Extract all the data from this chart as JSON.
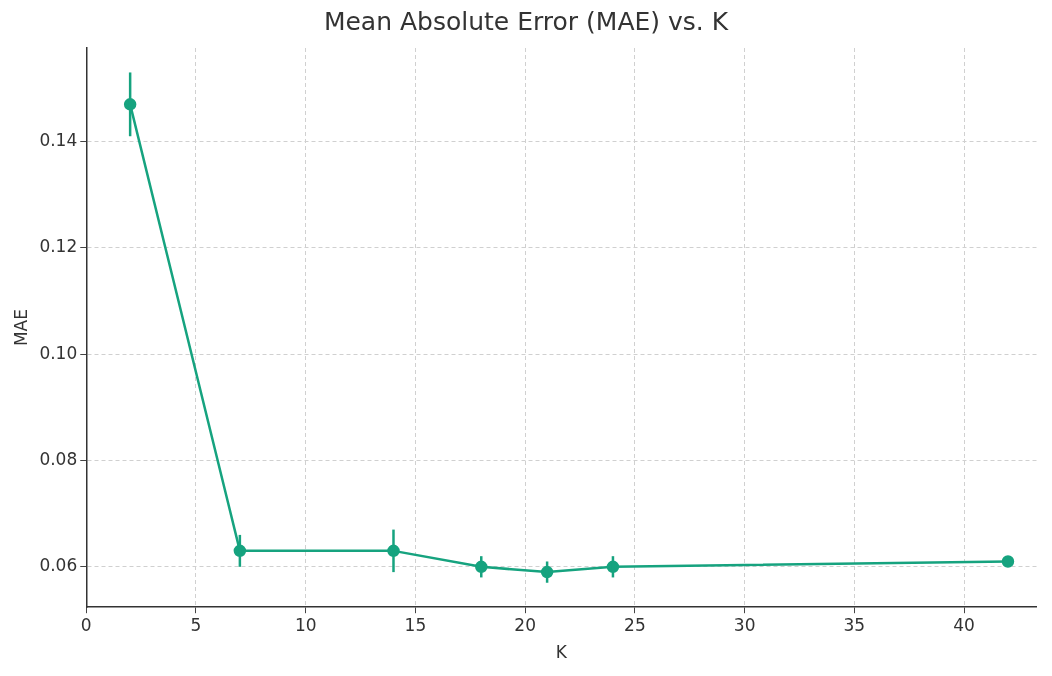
{
  "chart_data": {
    "type": "line",
    "title": "Mean Absolute Error (MAE) vs. K",
    "xlabel": "K",
    "ylabel": "MAE",
    "x": [
      2,
      7,
      14,
      18,
      21,
      24,
      42
    ],
    "series": [
      {
        "color": "#16a37f",
        "values": [
          0.147,
          0.063,
          0.063,
          0.06,
          0.059,
          0.06,
          0.061
        ],
        "errors": [
          0.006,
          0.003,
          0.004,
          0.002,
          0.002,
          0.002,
          null
        ]
      }
    ],
    "xlim": [
      0,
      43.3
    ],
    "xticks": [
      0,
      5,
      10,
      15,
      20,
      25,
      30,
      35,
      40
    ],
    "ylim": [
      0.0524,
      0.1576
    ],
    "yticks": [
      {
        "value": 0.06,
        "label": "0.06"
      },
      {
        "value": 0.08,
        "label": "0.08"
      },
      {
        "value": 0.1,
        "label": "0.10"
      },
      {
        "value": 0.12,
        "label": "0.12"
      },
      {
        "value": 0.14,
        "label": "0.14"
      }
    ],
    "grid": true,
    "marker": "circle",
    "line_style": "solid",
    "legend": false
  }
}
